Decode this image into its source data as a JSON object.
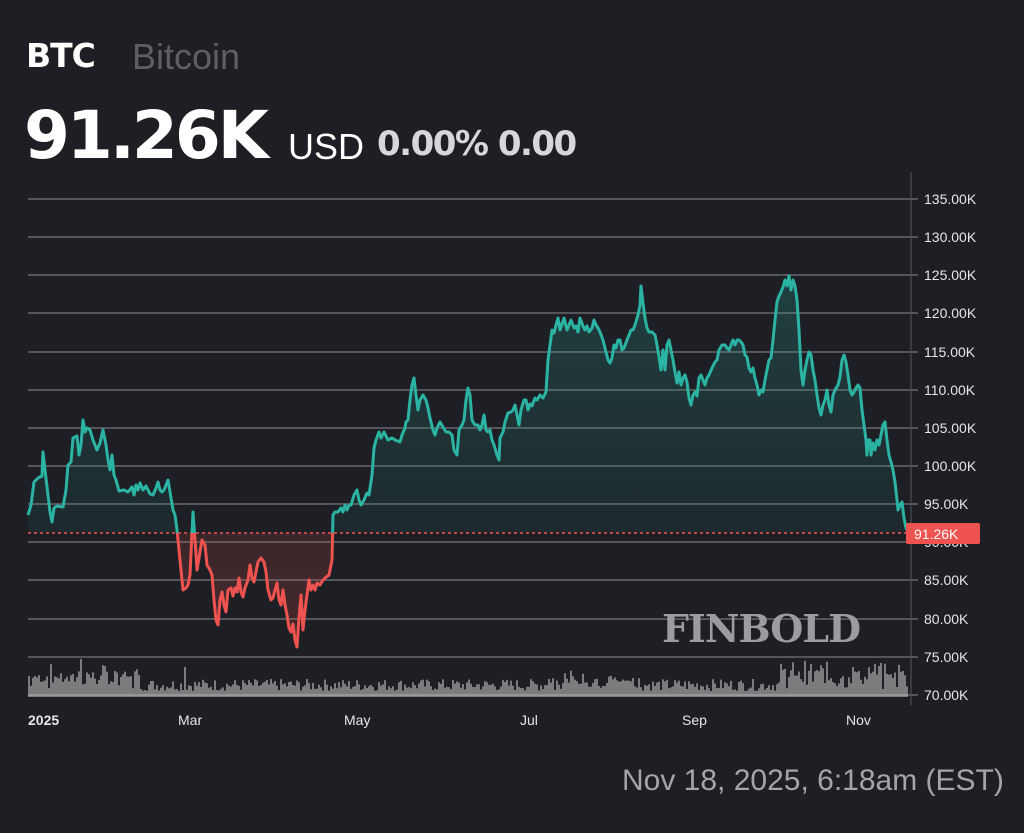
{
  "header": {
    "symbol": "BTC",
    "name": "Bitcoin",
    "price": "91.26K",
    "currency": "USD",
    "change_pct": "0.00%",
    "change_abs": "0.00"
  },
  "axis": {
    "y_ticks": [
      "135.00K",
      "130.00K",
      "125.00K",
      "120.00K",
      "115.00K",
      "110.00K",
      "105.00K",
      "100.00K",
      "95.00K",
      "90.00K",
      "85.00K",
      "80.00K",
      "75.00K",
      "70.00K"
    ],
    "x_ticks": [
      "2025",
      "Mar",
      "May",
      "Jul",
      "Sep",
      "Nov"
    ],
    "current_price_label": "91.26K"
  },
  "watermark": "FINBOLD",
  "timestamp": "Nov 18, 2025, 6:18am (EST)",
  "colors": {
    "background": "#1d1f24",
    "up": "#2bb3a3",
    "down": "#ef5350",
    "grid": "#6a6c70",
    "price_tag": "#ef5350"
  },
  "chart_data": {
    "type": "line",
    "title": "BTC Bitcoin",
    "xlabel": "",
    "ylabel": "USD",
    "ylim": [
      70000,
      137000
    ],
    "grid": true,
    "baseline_price": 91260,
    "x": [
      "2025-01-01",
      "2025-01-08",
      "2025-01-15",
      "2025-01-22",
      "2025-01-29",
      "2025-02-05",
      "2025-02-12",
      "2025-02-19",
      "2025-02-26",
      "2025-03-05",
      "2025-03-12",
      "2025-03-19",
      "2025-03-26",
      "2025-04-02",
      "2025-04-09",
      "2025-04-16",
      "2025-04-23",
      "2025-04-30",
      "2025-05-07",
      "2025-05-14",
      "2025-05-21",
      "2025-05-28",
      "2025-06-04",
      "2025-06-11",
      "2025-06-18",
      "2025-06-25",
      "2025-07-02",
      "2025-07-09",
      "2025-07-16",
      "2025-07-23",
      "2025-07-30",
      "2025-08-06",
      "2025-08-13",
      "2025-08-20",
      "2025-08-27",
      "2025-09-03",
      "2025-09-10",
      "2025-09-17",
      "2025-09-24",
      "2025-10-01",
      "2025-10-06",
      "2025-10-13",
      "2025-10-20",
      "2025-10-27",
      "2025-11-03",
      "2025-11-10",
      "2025-11-14",
      "2025-11-18"
    ],
    "series": [
      {
        "name": "BTC/USD",
        "values": [
          94000,
          98500,
          92500,
          102300,
          106000,
          104500,
          97000,
          96500,
          97500,
          86000,
          90000,
          83000,
          86000,
          87500,
          79000,
          84500,
          93500,
          94500,
          103500,
          104000,
          110000,
          106500,
          104000,
          109000,
          105000,
          101500,
          107500,
          117500,
          119500,
          118000,
          118500,
          114500,
          123500,
          113500,
          109000,
          110000,
          115500,
          116500,
          109000,
          120000,
          124800,
          112500,
          108500,
          114500,
          107500,
          102500,
          95000,
          91260
        ]
      }
    ],
    "volume_relative": "bars at bottom, spikes near Jan, Mar, Oct and Nov"
  }
}
